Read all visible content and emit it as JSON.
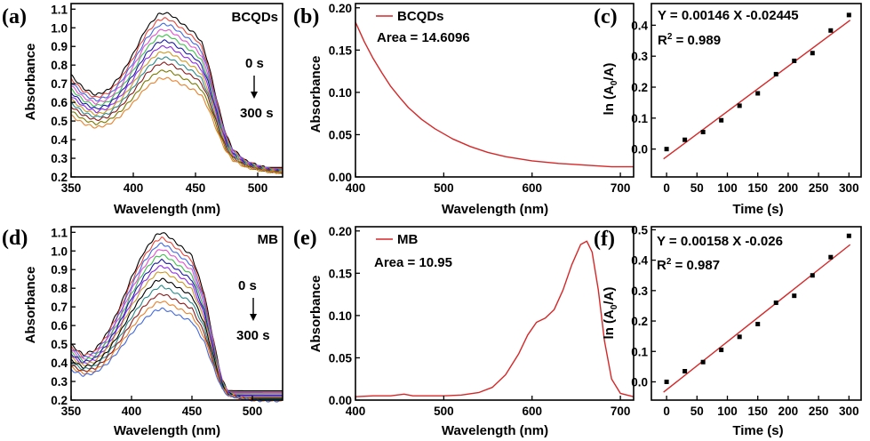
{
  "chart_data": [
    {
      "panel": "(a)",
      "type": "line",
      "title": "BCQDs",
      "xlabel": "Wavelength (nm)",
      "ylabel": "Absorbance",
      "xlim": [
        350,
        520
      ],
      "ylim": [
        0.2,
        1.13
      ],
      "xticks": [
        350,
        400,
        450,
        500
      ],
      "yticks": [
        0.2,
        0.3,
        0.4,
        0.5,
        0.6,
        0.7,
        0.8,
        0.9,
        1.0,
        1.1
      ],
      "ytick_labels": [
        "0.2",
        "0.3",
        "0.4",
        "0.5",
        "0.6",
        "0.7",
        "0.8",
        "0.9",
        "1.0",
        "1.1"
      ],
      "annotations": {
        "start": "0 s",
        "end": "300 s"
      },
      "series_peaks": [
        1.08,
        1.05,
        1.02,
        0.99,
        0.96,
        0.93,
        0.9,
        0.87,
        0.84,
        0.81,
        0.77,
        0.73
      ],
      "series_colors": [
        "#000000",
        "#e8473d",
        "#4169e1",
        "#e04fd0",
        "#3fbf4f",
        "#1a1aa8",
        "#8a2be2",
        "#cc9a2a",
        "#2a8a8a",
        "#8b1a1a",
        "#7a7a00",
        "#e8812a"
      ],
      "shape": {
        "x": [
          350,
          360,
          370,
          380,
          390,
          400,
          410,
          420,
          425,
          430,
          440,
          450,
          455,
          460,
          470,
          475,
          480,
          490,
          500,
          510,
          520
        ],
        "v": [
          0.62,
          0.54,
          0.5,
          0.53,
          0.62,
          0.75,
          0.9,
          0.99,
          1.0,
          0.99,
          0.93,
          0.87,
          0.82,
          0.7,
          0.38,
          0.25,
          0.17,
          0.1,
          0.07,
          0.05,
          0.04
        ]
      }
    },
    {
      "panel": "(b)",
      "type": "line",
      "legend": "BCQDs",
      "area_label": "Area = 14.6096",
      "xlabel": "Wavelength (nm)",
      "ylabel": "Absorbance",
      "xlim": [
        400,
        715
      ],
      "ylim": [
        0.0,
        0.205
      ],
      "xticks": [
        400,
        500,
        600,
        700
      ],
      "yticks": [
        0.0,
        0.05,
        0.1,
        0.15,
        0.2
      ],
      "ytick_labels": [
        "0.00",
        "0.05",
        "0.10",
        "0.15",
        "0.20"
      ],
      "color": "#d62728",
      "x": [
        400,
        410,
        420,
        430,
        440,
        450,
        460,
        475,
        490,
        510,
        530,
        550,
        570,
        600,
        630,
        660,
        690,
        715
      ],
      "y": [
        0.183,
        0.16,
        0.14,
        0.123,
        0.107,
        0.094,
        0.082,
        0.068,
        0.057,
        0.045,
        0.036,
        0.029,
        0.024,
        0.019,
        0.016,
        0.014,
        0.012,
        0.012
      ]
    },
    {
      "panel": "(c)",
      "type": "scatter",
      "equation": "Y = 0.00146 X -0.02445",
      "r2_prefix": "R",
      "r2_sup": "2",
      "r2_value": " = 0.989",
      "xlabel": "Time (s)",
      "ylabel_main": "ln (A",
      "ylabel_sub": "0",
      "ylabel_end": "/A)",
      "xlim": [
        -25,
        320
      ],
      "ylim": [
        -0.09,
        0.47
      ],
      "xticks": [
        0,
        50,
        100,
        150,
        200,
        250,
        300
      ],
      "yticks": [
        0.0,
        0.1,
        0.2,
        0.3,
        0.4
      ],
      "ytick_labels": [
        "0.0",
        "0.1",
        "0.2",
        "0.3",
        "0.4"
      ],
      "x": [
        0,
        30,
        60,
        90,
        120,
        150,
        180,
        210,
        240,
        270,
        300
      ],
      "y": [
        0.0,
        0.03,
        0.055,
        0.093,
        0.14,
        0.18,
        0.242,
        0.285,
        0.31,
        0.383,
        0.433
      ],
      "fit": {
        "slope": 0.00146,
        "intercept": -0.02445,
        "x0": -5,
        "x1": 302
      },
      "fit_color": "#d62728"
    },
    {
      "panel": "(d)",
      "type": "line",
      "title": "MB",
      "xlabel": "Wavelength (nm)",
      "ylabel": "Absorbance",
      "xlim": [
        350,
        525
      ],
      "ylim": [
        0.2,
        1.13
      ],
      "xticks": [
        350,
        400,
        450,
        500
      ],
      "yticks": [
        0.2,
        0.3,
        0.4,
        0.5,
        0.6,
        0.7,
        0.8,
        0.9,
        1.0,
        1.1
      ],
      "ytick_labels": [
        "0.2",
        "0.3",
        "0.4",
        "0.5",
        "0.6",
        "0.7",
        "0.8",
        "0.9",
        "1.0",
        "1.1"
      ],
      "annotations": {
        "start": "0 s",
        "end": "300 s"
      },
      "series_peaks": [
        1.1,
        1.07,
        1.04,
        1.01,
        0.98,
        0.95,
        0.92,
        0.89,
        0.85,
        0.81,
        0.77,
        0.73,
        0.69
      ],
      "series_colors": [
        "#000000",
        "#e8473d",
        "#4169e1",
        "#e04fd0",
        "#3fbf4f",
        "#1a1aa8",
        "#8a2be2",
        "#cc9a2a",
        "#000000",
        "#2a8a8a",
        "#8b1a1a",
        "#e8812a",
        "#4169e1"
      ],
      "shape": {
        "x": [
          350,
          360,
          370,
          380,
          390,
          400,
          410,
          420,
          425,
          430,
          440,
          450,
          460,
          470,
          475,
          480,
          490,
          500,
          510,
          525
        ],
        "v": [
          0.33,
          0.27,
          0.3,
          0.4,
          0.55,
          0.73,
          0.88,
          0.98,
          1.0,
          0.98,
          0.92,
          0.86,
          0.64,
          0.28,
          0.12,
          0.05,
          0.02,
          0.0,
          -0.01,
          -0.01
        ]
      }
    },
    {
      "panel": "(e)",
      "type": "line",
      "legend": "MB",
      "area_label": "Area = 10.95",
      "xlabel": "Wavelength (nm)",
      "ylabel": "Absorbance",
      "xlim": [
        400,
        715
      ],
      "ylim": [
        0.0,
        0.205
      ],
      "xticks": [
        400,
        500,
        600,
        700
      ],
      "yticks": [
        0.0,
        0.05,
        0.1,
        0.15,
        0.2
      ],
      "ytick_labels": [
        "0.00",
        "0.05",
        "0.10",
        "0.15",
        "0.20"
      ],
      "color": "#d62728",
      "x": [
        400,
        420,
        440,
        455,
        465,
        480,
        500,
        520,
        540,
        555,
        570,
        585,
        595,
        605,
        615,
        625,
        635,
        645,
        655,
        662,
        668,
        675,
        682,
        690,
        700,
        715
      ],
      "y": [
        0.004,
        0.005,
        0.005,
        0.007,
        0.005,
        0.005,
        0.005,
        0.006,
        0.009,
        0.015,
        0.03,
        0.055,
        0.077,
        0.092,
        0.097,
        0.107,
        0.13,
        0.16,
        0.184,
        0.188,
        0.175,
        0.13,
        0.07,
        0.025,
        0.008,
        0.004
      ]
    },
    {
      "panel": "(f)",
      "type": "scatter",
      "equation": "Y = 0.00158 X -0.026",
      "r2_prefix": "R",
      "r2_sup": "2",
      "r2_value": " = 0.987",
      "xlabel": "Time (s)",
      "ylabel_main": "ln (A",
      "ylabel_sub": "0",
      "ylabel_end": "/A)",
      "xlim": [
        -25,
        320
      ],
      "ylim": [
        -0.06,
        0.51
      ],
      "xticks": [
        0,
        50,
        100,
        150,
        200,
        250,
        300
      ],
      "yticks": [
        0.0,
        0.1,
        0.2,
        0.3,
        0.4,
        0.5
      ],
      "ytick_labels": [
        "0.0",
        "0.1",
        "0.2",
        "0.3",
        "0.4",
        "0.5"
      ],
      "x": [
        0,
        30,
        60,
        90,
        120,
        150,
        180,
        210,
        240,
        270,
        300
      ],
      "y": [
        0.0,
        0.035,
        0.065,
        0.105,
        0.148,
        0.19,
        0.26,
        0.283,
        0.35,
        0.41,
        0.48
      ],
      "fit": {
        "slope": 0.00158,
        "intercept": -0.026,
        "x0": -5,
        "x1": 302
      },
      "fit_color": "#d62728"
    }
  ]
}
